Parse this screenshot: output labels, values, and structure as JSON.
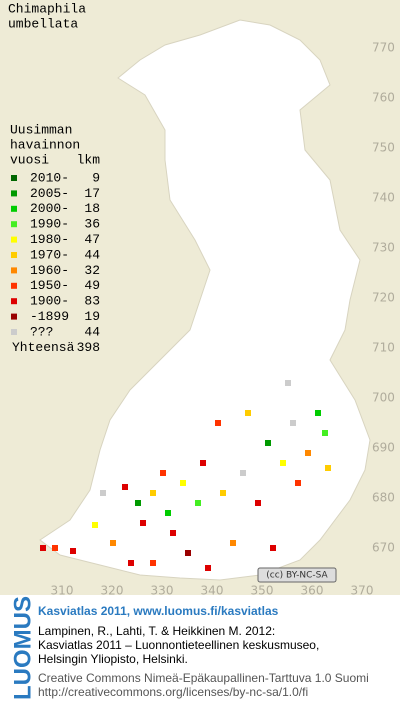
{
  "title": [
    "Chimaphila",
    "umbellata"
  ],
  "map": {
    "yticks": [
      770,
      760,
      750,
      740,
      730,
      720,
      710,
      700,
      690,
      680,
      670
    ],
    "xticks": [
      310,
      320,
      330,
      340,
      350,
      360,
      370
    ],
    "license_badge": "(cc) BY-NC-SA"
  },
  "legend": {
    "title": [
      "Uusimman",
      "havainnon",
      "vuosi"
    ],
    "count_header": "lkm",
    "entries": [
      {
        "label": "2010-",
        "color": "#006600",
        "count": 9
      },
      {
        "label": "2005-",
        "color": "#009900",
        "count": 17
      },
      {
        "label": "2000-",
        "color": "#00cc00",
        "count": 18
      },
      {
        "label": "1990-",
        "color": "#44ee22",
        "count": 36
      },
      {
        "label": "1980-",
        "color": "#ffff00",
        "count": 47
      },
      {
        "label": "1970-",
        "color": "#ffcc00",
        "count": 44
      },
      {
        "label": "1960-",
        "color": "#ff8800",
        "count": 32
      },
      {
        "label": "1950-",
        "color": "#ff3300",
        "count": 49
      },
      {
        "label": "1900-",
        "color": "#dd0000",
        "count": 83
      },
      {
        "label": "-1899",
        "color": "#990000",
        "count": 19
      },
      {
        "label": "???",
        "color": "#cccccc",
        "count": 44
      }
    ],
    "total": {
      "label": "Yhteensä",
      "count": 398
    }
  },
  "footer": {
    "logo": "LUOMUS",
    "link": "Kasviatlas 2011, www.luomus.fi/kasviatlas",
    "citation": [
      "Lampinen, R., Lahti, T. & Heikkinen M. 2012:",
      "Kasviatlas 2011 – Luonnontieteellinen keskusmuseo,",
      "Helsingin Yliopisto, Helsinki."
    ],
    "license": [
      "Creative Commons Nimeä-Epäkaupallinen-Tarttuva 1.0 Suomi",
      "http://creativecommons.org/licenses/by-nc-sa/1.0/fi"
    ]
  }
}
